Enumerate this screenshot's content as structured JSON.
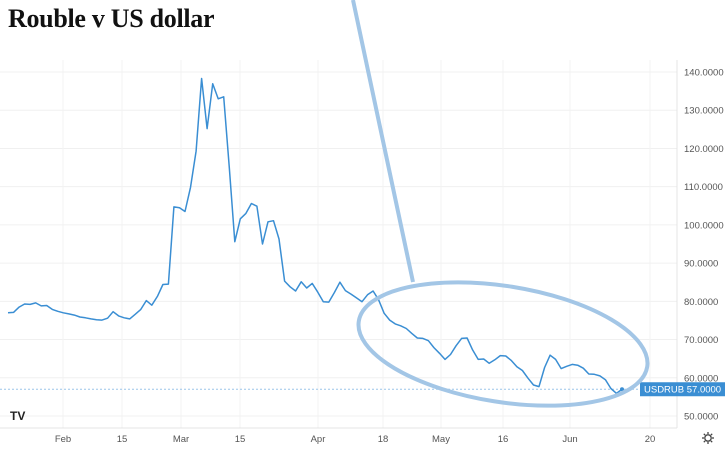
{
  "chart_data": {
    "type": "line",
    "title": "Rouble v US dollar",
    "xlabel": "",
    "ylabel": "",
    "ylim": [
      45,
      145
    ],
    "x_ticks": [
      "Feb",
      "15",
      "Mar",
      "15",
      "Apr",
      "18",
      "May",
      "16",
      "Jun",
      "20"
    ],
    "y_ticks": [
      "140.0000",
      "130.0000",
      "120.0000",
      "110.0000",
      "100.0000",
      "90.0000",
      "80.0000",
      "70.0000",
      "60.0000",
      "50.0000"
    ],
    "y_tick_values": [
      140,
      130,
      120,
      110,
      100,
      90,
      80,
      70,
      60,
      50
    ],
    "grid": true,
    "series": [
      {
        "name": "",
        "color": "#3a8ed3",
        "values": [
          77.0,
          77.1,
          78.5,
          79.3,
          79.2,
          79.6,
          78.8,
          78.9,
          77.9,
          77.4,
          77.0,
          76.7,
          76.4,
          75.9,
          75.7,
          75.4,
          75.2,
          75.1,
          75.6,
          77.3,
          76.2,
          75.7,
          75.4,
          76.6,
          77.9,
          80.2,
          79.0,
          81.3,
          84.4,
          84.5,
          104.7,
          104.5,
          103.5,
          109.8,
          119.3,
          138.3,
          125.2,
          136.9,
          133.0,
          133.5,
          115.0,
          95.6,
          101.6,
          103.0,
          105.6,
          104.9,
          95.0,
          100.8,
          101.1,
          96.3,
          85.3,
          83.8,
          82.7,
          85.1,
          83.5,
          84.7,
          82.4,
          79.9,
          79.8,
          82.3,
          85.0,
          82.8,
          81.9,
          80.9,
          79.9,
          81.7,
          82.7,
          80.4,
          76.9,
          75.1,
          74.1,
          73.6,
          72.9,
          71.6,
          70.4,
          70.3,
          69.7,
          67.9,
          66.4,
          64.8,
          66.1,
          68.4,
          70.3,
          70.4,
          67.3,
          64.8,
          64.9,
          63.8,
          64.7,
          65.8,
          65.7,
          64.5,
          62.9,
          61.9,
          59.9,
          58.1,
          57.7,
          62.7,
          65.9,
          64.8,
          62.4,
          63.0,
          63.5,
          63.3,
          62.5,
          61.0,
          60.9,
          60.5,
          59.5,
          57.2,
          55.9,
          57.0
        ]
      }
    ],
    "last_value": 57.0,
    "last_label": "USDRUB 57.0000",
    "logo": "TV"
  }
}
